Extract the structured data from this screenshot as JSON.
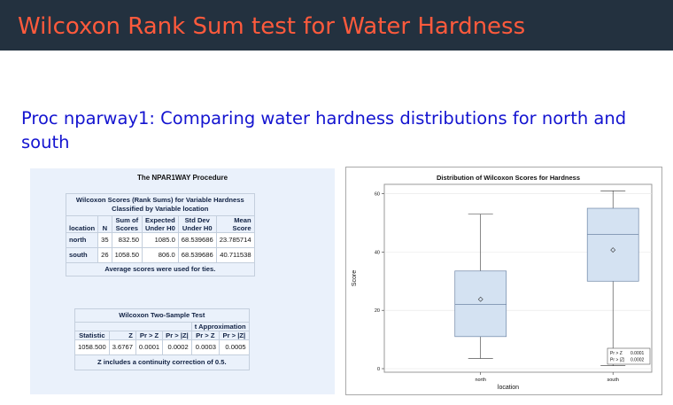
{
  "slide": {
    "title": "Wilcoxon Rank Sum test for Water Hardness",
    "subtitle": "Proc nparway1: Comparing water hardness distributions for north and south"
  },
  "output": {
    "procedure_title": "The NPAR1WAY Procedure",
    "scores_table": {
      "caption1": "Wilcoxon Scores (Rank Sums) for Variable Hardness",
      "caption2": "Classified by Variable location",
      "headers": [
        [
          "",
          ""
        ],
        [
          "",
          "N"
        ],
        [
          "Sum of",
          "Scores"
        ],
        [
          "Expected",
          "Under H0"
        ],
        [
          "Std Dev",
          "Under H0"
        ],
        [
          "Mean",
          "Score"
        ]
      ],
      "header_location": "location",
      "rows": [
        [
          "north",
          "35",
          "832.50",
          "1085.0",
          "68.539686",
          "23.785714"
        ],
        [
          "south",
          "26",
          "1058.50",
          "806.0",
          "68.539686",
          "40.711538"
        ]
      ],
      "footnote": "Average scores were used for ties."
    },
    "two_sample_table": {
      "caption": "Wilcoxon Two-Sample Test",
      "t_approx_header": "t Approximation",
      "headers": [
        "Statistic",
        "Z",
        "Pr > Z",
        "Pr > |Z|",
        "Pr > Z",
        "Pr > |Z|"
      ],
      "row": [
        "1058.500",
        "3.6767",
        "0.0001",
        "0.0002",
        "0.0003",
        "0.0005"
      ],
      "footnote": "Z includes a continuity correction of 0.5."
    }
  },
  "chart_data": {
    "type": "box",
    "title": "Distribution of Wilcoxon Scores for Hardness",
    "xlabel": "location",
    "ylabel": "Score",
    "categories": [
      "north",
      "south"
    ],
    "ylim": [
      0,
      62
    ],
    "yticks": [
      0,
      20,
      40,
      60
    ],
    "boxes": [
      {
        "whisker_low": 3.5,
        "q1": 11,
        "median": 22,
        "q3": 33.5,
        "whisker_high": 53,
        "mean": 23.8
      },
      {
        "whisker_low": 1,
        "q1": 30,
        "median": 46,
        "q3": 55,
        "whisker_high": 61,
        "mean": 40.7
      }
    ],
    "inset": [
      [
        "Pr > Z",
        "0.0001"
      ],
      [
        "Pr > |Z|",
        "0.0002"
      ]
    ],
    "colors": {
      "box_fill": "#d4e2f2",
      "box_stroke": "#6e86a6",
      "whisker": "#333333"
    }
  }
}
